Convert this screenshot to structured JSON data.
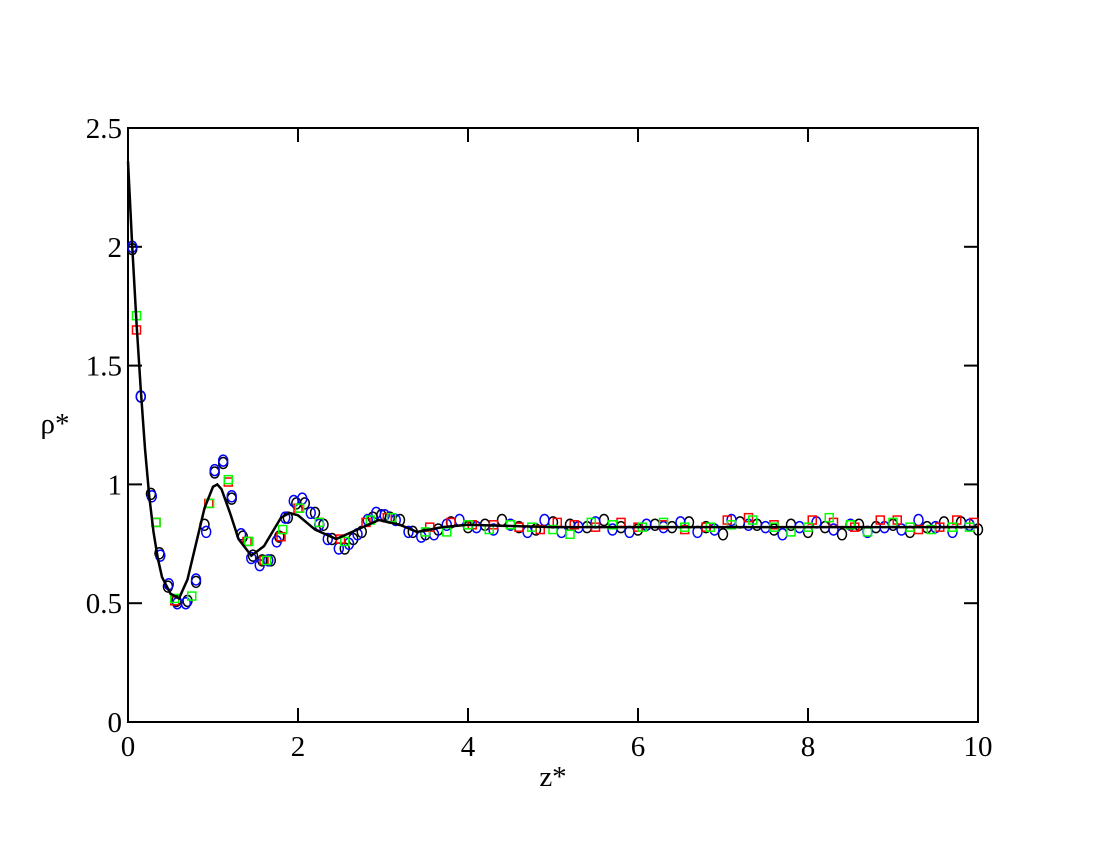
{
  "chart_data": {
    "type": "line",
    "xlabel": "z*",
    "ylabel": "ρ*",
    "xlim": [
      0,
      10
    ],
    "ylim": [
      0,
      2.5
    ],
    "xticks": [
      0,
      2,
      4,
      6,
      8,
      10
    ],
    "yticks": [
      0,
      0.5,
      1,
      1.5,
      2,
      2.5
    ],
    "grid": false,
    "series": [
      {
        "type": "line",
        "color": "#000000",
        "x": [
          0,
          0.05,
          0.1,
          0.15,
          0.2,
          0.25,
          0.3,
          0.35,
          0.4,
          0.5,
          0.6,
          0.7,
          0.8,
          0.9,
          1.0,
          1.05,
          1.1,
          1.2,
          1.3,
          1.45,
          1.6,
          1.7,
          1.8,
          1.9,
          2.0,
          2.2,
          2.45,
          2.7,
          2.95,
          3.2,
          3.4,
          3.7,
          4,
          5,
          6,
          7,
          8,
          9,
          10
        ],
        "values": [
          2.36,
          2.0,
          1.68,
          1.4,
          1.15,
          0.95,
          0.8,
          0.69,
          0.61,
          0.54,
          0.52,
          0.6,
          0.75,
          0.9,
          0.99,
          1.0,
          0.98,
          0.88,
          0.77,
          0.7,
          0.74,
          0.8,
          0.86,
          0.88,
          0.87,
          0.81,
          0.77,
          0.81,
          0.85,
          0.83,
          0.8,
          0.82,
          0.83,
          0.82,
          0.82,
          0.82,
          0.82,
          0.82,
          0.82
        ]
      },
      {
        "type": "scatter",
        "marker": "circle",
        "color": "#000000",
        "x": [
          0.05,
          0.15,
          0.27,
          0.37,
          0.47,
          0.57,
          0.7,
          0.8,
          0.9,
          1.02,
          1.12,
          1.22,
          1.35,
          1.47,
          1.58,
          1.68,
          1.78,
          1.88,
          1.98,
          2.08,
          2.2,
          2.3,
          2.4,
          2.55,
          2.65,
          2.75,
          2.88,
          2.98,
          3.08,
          3.2,
          3.35,
          3.5,
          3.65,
          3.8,
          4.0,
          4.2,
          4.4,
          4.6,
          4.8,
          5.0,
          5.2,
          5.4,
          5.6,
          5.8,
          6.0,
          6.2,
          6.4,
          6.6,
          6.8,
          7.0,
          7.2,
          7.4,
          7.6,
          7.8,
          8.0,
          8.2,
          8.4,
          8.6,
          8.8,
          9.0,
          9.2,
          9.4,
          9.6,
          9.8,
          10.0
        ],
        "values": [
          1.99,
          1.37,
          0.96,
          0.71,
          0.57,
          0.51,
          0.51,
          0.59,
          0.83,
          1.05,
          1.09,
          0.94,
          0.78,
          0.7,
          0.68,
          0.68,
          0.78,
          0.86,
          0.92,
          0.92,
          0.88,
          0.83,
          0.77,
          0.73,
          0.77,
          0.8,
          0.86,
          0.87,
          0.86,
          0.85,
          0.8,
          0.79,
          0.81,
          0.84,
          0.82,
          0.83,
          0.85,
          0.82,
          0.81,
          0.84,
          0.83,
          0.82,
          0.85,
          0.82,
          0.81,
          0.83,
          0.82,
          0.84,
          0.82,
          0.79,
          0.84,
          0.83,
          0.81,
          0.83,
          0.8,
          0.82,
          0.79,
          0.83,
          0.82,
          0.83,
          0.8,
          0.82,
          0.84,
          0.84,
          0.81
        ]
      },
      {
        "type": "scatter",
        "marker": "circle",
        "color": "#0000ff",
        "x": [
          0.05,
          0.15,
          0.28,
          0.38,
          0.48,
          0.58,
          0.68,
          0.8,
          0.92,
          1.02,
          1.12,
          1.22,
          1.33,
          1.45,
          1.55,
          1.65,
          1.75,
          1.85,
          1.95,
          2.05,
          2.15,
          2.25,
          2.35,
          2.48,
          2.6,
          2.7,
          2.82,
          2.92,
          3.02,
          3.15,
          3.3,
          3.45,
          3.6,
          3.75,
          3.9,
          4.1,
          4.3,
          4.5,
          4.7,
          4.9,
          5.1,
          5.3,
          5.5,
          5.7,
          5.9,
          6.1,
          6.3,
          6.5,
          6.7,
          6.9,
          7.1,
          7.3,
          7.5,
          7.7,
          7.9,
          8.1,
          8.3,
          8.5,
          8.7,
          8.9,
          9.1,
          9.3,
          9.5,
          9.7,
          9.9
        ],
        "values": [
          2.0,
          1.37,
          0.95,
          0.7,
          0.58,
          0.5,
          0.5,
          0.6,
          0.8,
          1.06,
          1.1,
          0.95,
          0.79,
          0.69,
          0.66,
          0.68,
          0.76,
          0.86,
          0.93,
          0.94,
          0.88,
          0.83,
          0.77,
          0.73,
          0.75,
          0.79,
          0.85,
          0.88,
          0.87,
          0.85,
          0.8,
          0.78,
          0.79,
          0.83,
          0.85,
          0.82,
          0.81,
          0.83,
          0.8,
          0.85,
          0.8,
          0.82,
          0.84,
          0.81,
          0.8,
          0.83,
          0.82,
          0.84,
          0.8,
          0.81,
          0.85,
          0.83,
          0.82,
          0.79,
          0.82,
          0.84,
          0.81,
          0.83,
          0.8,
          0.82,
          0.81,
          0.85,
          0.82,
          0.8,
          0.83
        ]
      },
      {
        "type": "scatter",
        "marker": "square",
        "color": "#ff0000",
        "x": [
          0.1,
          0.33,
          0.55,
          0.95,
          1.18,
          1.4,
          1.6,
          1.8,
          2.0,
          2.25,
          2.5,
          2.8,
          3.05,
          3.55,
          3.8,
          4.05,
          4.3,
          4.6,
          4.85,
          5.05,
          5.25,
          5.5,
          5.8,
          6.0,
          6.3,
          6.55,
          6.8,
          7.05,
          7.3,
          7.6,
          8.05,
          8.3,
          8.55,
          8.85,
          9.05,
          9.3,
          9.55,
          9.75,
          9.95
        ],
        "values": [
          1.65,
          0.84,
          0.51,
          0.92,
          1.01,
          0.76,
          0.68,
          0.78,
          0.9,
          0.84,
          0.77,
          0.84,
          0.86,
          0.82,
          0.84,
          0.83,
          0.83,
          0.82,
          0.81,
          0.84,
          0.83,
          0.82,
          0.84,
          0.82,
          0.83,
          0.81,
          0.82,
          0.85,
          0.86,
          0.83,
          0.85,
          0.84,
          0.82,
          0.85,
          0.85,
          0.81,
          0.82,
          0.85,
          0.84
        ]
      },
      {
        "type": "scatter",
        "marker": "square",
        "color": "#00ff00",
        "x": [
          0.1,
          0.33,
          0.55,
          0.75,
          0.96,
          1.18,
          1.42,
          1.63,
          1.82,
          2.02,
          2.25,
          2.55,
          2.85,
          3.1,
          3.5,
          3.75,
          4.0,
          4.25,
          4.5,
          4.75,
          5.0,
          5.2,
          5.45,
          5.7,
          6.05,
          6.3,
          6.55,
          6.85,
          7.1,
          7.35,
          7.6,
          7.8,
          8.0,
          8.25,
          8.5,
          8.7,
          9.0,
          9.2,
          9.45,
          9.7,
          9.9
        ],
        "values": [
          1.71,
          0.84,
          0.52,
          0.53,
          0.92,
          1.02,
          0.76,
          0.68,
          0.81,
          0.9,
          0.84,
          0.76,
          0.85,
          0.86,
          0.8,
          0.8,
          0.83,
          0.81,
          0.83,
          0.82,
          0.81,
          0.79,
          0.84,
          0.83,
          0.82,
          0.84,
          0.82,
          0.82,
          0.83,
          0.85,
          0.82,
          0.8,
          0.82,
          0.86,
          0.83,
          0.8,
          0.84,
          0.82,
          0.81,
          0.82,
          0.82
        ]
      }
    ]
  }
}
